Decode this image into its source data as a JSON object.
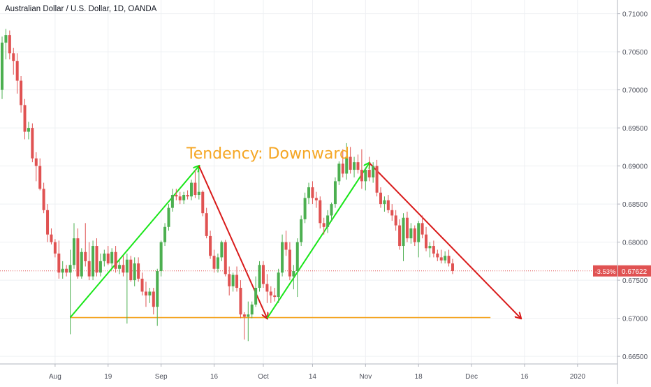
{
  "chart_data": {
    "type": "candlestick",
    "title": "Australian Dollar / U.S. Dollar, 1D, OANDA",
    "y_ticks": [
      "0.71000",
      "0.70500",
      "0.70000",
      "0.69500",
      "0.69000",
      "0.68500",
      "0.68000",
      "0.67500",
      "0.67000",
      "0.66500"
    ],
    "ylim": [
      0.664,
      0.7118
    ],
    "x_ticks": [
      "Aug",
      "19",
      "Sep",
      "16",
      "Oct",
      "14",
      "Nov",
      "18",
      "Dec",
      "16",
      "2020"
    ],
    "x_tick_index": [
      14,
      28,
      42,
      56,
      69,
      82,
      96,
      110,
      124,
      138,
      152
    ],
    "x_count": 170,
    "current_price": "0.67622",
    "current_value": 0.67622,
    "change_label": "-3.53%",
    "annotation_text": "Tendency: Downward",
    "colors": {
      "up": "#4caf50",
      "down": "#e05252",
      "green_line": "#19e619",
      "red_line": "#d91a1a",
      "support": "#f5a623",
      "annotation": "#f5a623"
    },
    "support_level": 0.6701,
    "support_range": [
      18,
      129
    ],
    "trend_lines": [
      {
        "color": "green",
        "from": [
          18,
          0.6701
        ],
        "to": [
          52,
          0.69
        ]
      },
      {
        "color": "red",
        "from": [
          52,
          0.69
        ],
        "to": [
          70,
          0.67
        ]
      },
      {
        "color": "green",
        "from": [
          70,
          0.67
        ],
        "to": [
          97,
          0.6904
        ]
      },
      {
        "color": "red",
        "from": [
          97,
          0.6904
        ],
        "to": [
          137,
          0.67
        ]
      }
    ],
    "candles": [
      [
        0,
        0.7,
        0.707,
        0.6988,
        0.7062
      ],
      [
        1,
        0.7062,
        0.708,
        0.704,
        0.7072
      ],
      [
        2,
        0.7072,
        0.7078,
        0.704,
        0.7048
      ],
      [
        3,
        0.7048,
        0.7055,
        0.702,
        0.7038
      ],
      [
        4,
        0.7038,
        0.7048,
        0.6995,
        0.7012
      ],
      [
        5,
        0.7012,
        0.7018,
        0.697,
        0.698
      ],
      [
        6,
        0.698,
        0.6988,
        0.6935,
        0.6945
      ],
      [
        7,
        0.6945,
        0.6958,
        0.6935,
        0.695
      ],
      [
        8,
        0.695,
        0.6956,
        0.6905,
        0.691
      ],
      [
        9,
        0.691,
        0.6918,
        0.688,
        0.69
      ],
      [
        10,
        0.69,
        0.691,
        0.6868,
        0.687
      ],
      [
        11,
        0.687,
        0.6878,
        0.6838,
        0.6842
      ],
      [
        12,
        0.6842,
        0.685,
        0.68,
        0.681
      ],
      [
        13,
        0.681,
        0.6818,
        0.6797,
        0.68
      ],
      [
        14,
        0.68,
        0.6804,
        0.678,
        0.6785
      ],
      [
        15,
        0.6785,
        0.6802,
        0.6752,
        0.676
      ],
      [
        16,
        0.676,
        0.6775,
        0.6752,
        0.6765
      ],
      [
        17,
        0.6765,
        0.677,
        0.6755,
        0.676
      ],
      [
        18,
        0.676,
        0.679,
        0.6679,
        0.677
      ],
      [
        19,
        0.677,
        0.6825,
        0.6765,
        0.6805
      ],
      [
        20,
        0.6805,
        0.6818,
        0.6752,
        0.6755
      ],
      [
        21,
        0.6755,
        0.6792,
        0.6752,
        0.6787
      ],
      [
        22,
        0.6787,
        0.6825,
        0.6768,
        0.6775
      ],
      [
        23,
        0.6775,
        0.68,
        0.675,
        0.6755
      ],
      [
        24,
        0.6755,
        0.6802,
        0.675,
        0.6795
      ],
      [
        25,
        0.6795,
        0.6805,
        0.6755,
        0.676
      ],
      [
        26,
        0.676,
        0.6785,
        0.6755,
        0.6775
      ],
      [
        27,
        0.6775,
        0.679,
        0.6768,
        0.6785
      ],
      [
        28,
        0.6785,
        0.6795,
        0.677,
        0.6772
      ],
      [
        29,
        0.6772,
        0.6792,
        0.6766,
        0.6787
      ],
      [
        30,
        0.6787,
        0.6795,
        0.676,
        0.6765
      ],
      [
        31,
        0.6765,
        0.6776,
        0.6758,
        0.677
      ],
      [
        32,
        0.677,
        0.6782,
        0.6755,
        0.676
      ],
      [
        33,
        0.676,
        0.6785,
        0.6693,
        0.6777
      ],
      [
        34,
        0.6777,
        0.6782,
        0.6748,
        0.675
      ],
      [
        35,
        0.675,
        0.678,
        0.6742,
        0.6772
      ],
      [
        36,
        0.6772,
        0.678,
        0.6748,
        0.6752
      ],
      [
        37,
        0.6752,
        0.676,
        0.673,
        0.6735
      ],
      [
        38,
        0.6735,
        0.6748,
        0.6715,
        0.673
      ],
      [
        39,
        0.673,
        0.674,
        0.672,
        0.6735
      ],
      [
        40,
        0.6735,
        0.674,
        0.6705,
        0.6715
      ],
      [
        41,
        0.6715,
        0.6765,
        0.669,
        0.6762
      ],
      [
        42,
        0.6762,
        0.6802,
        0.6755,
        0.68
      ],
      [
        43,
        0.68,
        0.6825,
        0.6795,
        0.682
      ],
      [
        44,
        0.682,
        0.685,
        0.6815,
        0.6845
      ],
      [
        45,
        0.6845,
        0.687,
        0.684,
        0.6862
      ],
      [
        46,
        0.6862,
        0.687,
        0.6855,
        0.686
      ],
      [
        47,
        0.686,
        0.6866,
        0.685,
        0.6855
      ],
      [
        48,
        0.6855,
        0.6866,
        0.685,
        0.6862
      ],
      [
        49,
        0.6862,
        0.6868,
        0.6856,
        0.686
      ],
      [
        50,
        0.686,
        0.6882,
        0.6855,
        0.6878
      ],
      [
        51,
        0.6878,
        0.6895,
        0.6858,
        0.6862
      ],
      [
        52,
        0.6862,
        0.6895,
        0.6856,
        0.6866
      ],
      [
        53,
        0.6866,
        0.6868,
        0.6834,
        0.6838
      ],
      [
        54,
        0.6838,
        0.6845,
        0.6805,
        0.6808
      ],
      [
        55,
        0.6808,
        0.6815,
        0.6778,
        0.6782
      ],
      [
        56,
        0.6782,
        0.679,
        0.676,
        0.6765
      ],
      [
        57,
        0.6765,
        0.6785,
        0.676,
        0.678
      ],
      [
        58,
        0.678,
        0.6802,
        0.6775,
        0.68
      ],
      [
        59,
        0.68,
        0.6803,
        0.6755,
        0.6758
      ],
      [
        60,
        0.6758,
        0.6768,
        0.673,
        0.6742
      ],
      [
        61,
        0.6742,
        0.676,
        0.6735,
        0.6757
      ],
      [
        62,
        0.6757,
        0.6768,
        0.6735,
        0.674
      ],
      [
        63,
        0.674,
        0.675,
        0.67,
        0.6705
      ],
      [
        64,
        0.6705,
        0.6708,
        0.6672,
        0.6702
      ],
      [
        65,
        0.6702,
        0.6722,
        0.667,
        0.6705
      ],
      [
        66,
        0.6705,
        0.6722,
        0.67,
        0.6718
      ],
      [
        67,
        0.6718,
        0.6755,
        0.6715,
        0.674
      ],
      [
        68,
        0.674,
        0.6775,
        0.6735,
        0.677
      ],
      [
        69,
        0.677,
        0.6775,
        0.674,
        0.6745
      ],
      [
        70,
        0.6745,
        0.6758,
        0.672,
        0.6735
      ],
      [
        71,
        0.6735,
        0.6742,
        0.672,
        0.673
      ],
      [
        72,
        0.673,
        0.674,
        0.6722,
        0.6728
      ],
      [
        73,
        0.6728,
        0.6765,
        0.672,
        0.676
      ],
      [
        74,
        0.676,
        0.681,
        0.6755,
        0.68
      ],
      [
        75,
        0.68,
        0.6815,
        0.6782,
        0.679
      ],
      [
        76,
        0.679,
        0.68,
        0.675,
        0.6755
      ],
      [
        77,
        0.6755,
        0.677,
        0.6738,
        0.6762
      ],
      [
        78,
        0.6762,
        0.6805,
        0.6728,
        0.68
      ],
      [
        79,
        0.68,
        0.6835,
        0.6795,
        0.683
      ],
      [
        80,
        0.683,
        0.6865,
        0.6825,
        0.6858
      ],
      [
        81,
        0.6858,
        0.6878,
        0.685,
        0.6872
      ],
      [
        82,
        0.6872,
        0.688,
        0.685,
        0.6858
      ],
      [
        83,
        0.6858,
        0.6866,
        0.6845,
        0.6855
      ],
      [
        84,
        0.6855,
        0.686,
        0.6818,
        0.6825
      ],
      [
        85,
        0.6825,
        0.6832,
        0.681,
        0.682
      ],
      [
        86,
        0.682,
        0.6842,
        0.6812,
        0.6835
      ],
      [
        87,
        0.6835,
        0.6852,
        0.6828,
        0.685
      ],
      [
        88,
        0.685,
        0.6885,
        0.6845,
        0.688
      ],
      [
        89,
        0.688,
        0.6906,
        0.6875,
        0.6903
      ],
      [
        90,
        0.6903,
        0.6922,
        0.6885,
        0.689
      ],
      [
        91,
        0.689,
        0.693,
        0.6882,
        0.6912
      ],
      [
        92,
        0.6912,
        0.6925,
        0.689,
        0.6895
      ],
      [
        93,
        0.6895,
        0.6912,
        0.6885,
        0.6905
      ],
      [
        94,
        0.6905,
        0.6915,
        0.689,
        0.6895
      ],
      [
        95,
        0.6895,
        0.6922,
        0.687,
        0.688
      ],
      [
        96,
        0.688,
        0.6898,
        0.6868,
        0.6895
      ],
      [
        97,
        0.6895,
        0.6912,
        0.688,
        0.6885
      ],
      [
        98,
        0.6885,
        0.6905,
        0.6878,
        0.69
      ],
      [
        99,
        0.69,
        0.6908,
        0.686,
        0.6865
      ],
      [
        100,
        0.6865,
        0.6872,
        0.6845,
        0.685
      ],
      [
        101,
        0.685,
        0.686,
        0.684,
        0.6855
      ],
      [
        102,
        0.6855,
        0.6862,
        0.6838,
        0.6842
      ],
      [
        103,
        0.6842,
        0.685,
        0.6828,
        0.6835
      ],
      [
        104,
        0.6835,
        0.6842,
        0.6815,
        0.6822
      ],
      [
        105,
        0.6822,
        0.683,
        0.679,
        0.6795
      ],
      [
        106,
        0.6795,
        0.6838,
        0.6775,
        0.6832
      ],
      [
        107,
        0.6832,
        0.684,
        0.68,
        0.6805
      ],
      [
        108,
        0.6805,
        0.6825,
        0.6798,
        0.6818
      ],
      [
        109,
        0.6818,
        0.6822,
        0.6795,
        0.68
      ],
      [
        110,
        0.68,
        0.6828,
        0.678,
        0.6825
      ],
      [
        111,
        0.6825,
        0.6835,
        0.6805,
        0.681
      ],
      [
        112,
        0.681,
        0.682,
        0.6788,
        0.6792
      ],
      [
        113,
        0.6792,
        0.68,
        0.678,
        0.6795
      ],
      [
        114,
        0.6795,
        0.6802,
        0.678,
        0.6785
      ],
      [
        115,
        0.6785,
        0.679,
        0.6775,
        0.678
      ],
      [
        116,
        0.678,
        0.679,
        0.6772,
        0.6776
      ],
      [
        117,
        0.6776,
        0.6788,
        0.6772,
        0.6782
      ],
      [
        118,
        0.6782,
        0.679,
        0.6768,
        0.6772
      ],
      [
        119,
        0.6772,
        0.6778,
        0.6758,
        0.6762
      ]
    ]
  }
}
